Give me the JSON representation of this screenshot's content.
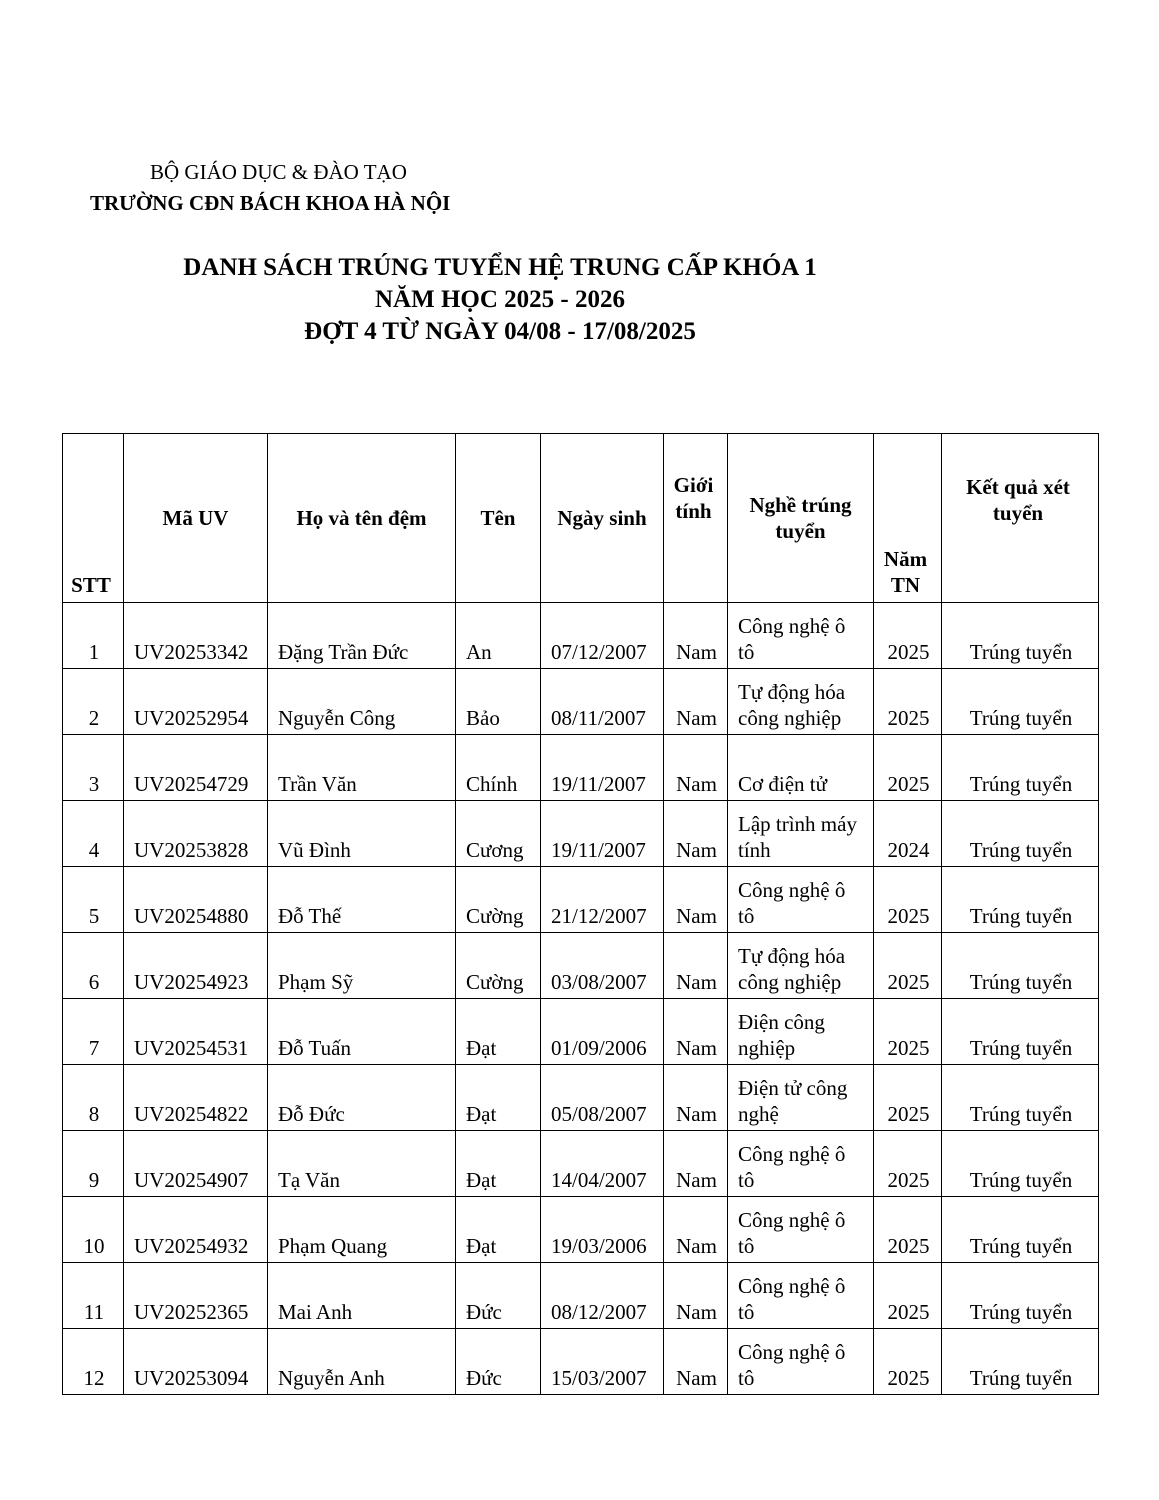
{
  "header": {
    "ministry": "BỘ GIÁO DỤC & ĐÀO TẠO",
    "school": "TRƯỜNG CĐN BÁCH KHOA HÀ NỘI"
  },
  "title": [
    "DANH SÁCH TRÚNG TUYỂN HỆ TRUNG CẤP KHÓA 1",
    "NĂM HỌC 2025 - 2026",
    "ĐỢT 4 TỪ NGÀY 04/08 - 17/08/2025"
  ],
  "table": {
    "columns": [
      "STT",
      "Mã UV",
      "Họ và tên đệm",
      "Tên",
      "Ngày sinh",
      "Giới tính",
      "Nghề trúng tuyển",
      "Năm TN",
      "Kết quả xét tuyển"
    ],
    "rows": [
      [
        "1",
        "UV20253342",
        "Đặng Trần Đức",
        "An",
        "07/12/2007",
        "Nam",
        "Công nghệ ô tô",
        "2025",
        "Trúng tuyển"
      ],
      [
        "2",
        "UV20252954",
        "Nguyễn Công",
        "Bảo",
        "08/11/2007",
        "Nam",
        "Tự động hóa công nghiệp",
        "2025",
        "Trúng tuyển"
      ],
      [
        "3",
        "UV20254729",
        "Trần Văn",
        "Chính",
        "19/11/2007",
        "Nam",
        "Cơ điện tử",
        "2025",
        "Trúng tuyển"
      ],
      [
        "4",
        "UV20253828",
        "Vũ Đình",
        "Cương",
        "19/11/2007",
        "Nam",
        "Lập trình máy tính",
        "2024",
        "Trúng tuyển"
      ],
      [
        "5",
        "UV20254880",
        "Đỗ Thế",
        "Cường",
        "21/12/2007",
        "Nam",
        "Công nghệ ô tô",
        "2025",
        "Trúng tuyển"
      ],
      [
        "6",
        "UV20254923",
        "Phạm Sỹ",
        "Cường",
        "03/08/2007",
        "Nam",
        "Tự động hóa công nghiệp",
        "2025",
        "Trúng tuyển"
      ],
      [
        "7",
        "UV20254531",
        "Đỗ Tuấn",
        "Đạt",
        "01/09/2006",
        "Nam",
        "Điện công nghiệp",
        "2025",
        "Trúng tuyển"
      ],
      [
        "8",
        "UV20254822",
        "Đỗ Đức",
        "Đạt",
        "05/08/2007",
        "Nam",
        "Điện tử công nghệ",
        "2025",
        "Trúng tuyển"
      ],
      [
        "9",
        "UV20254907",
        "Tạ Văn",
        "Đạt",
        "14/04/2007",
        "Nam",
        "Công nghệ ô tô",
        "2025",
        "Trúng tuyển"
      ],
      [
        "10",
        "UV20254932",
        "Phạm Quang",
        "Đạt",
        "19/03/2006",
        "Nam",
        "Công nghệ ô tô",
        "2025",
        "Trúng tuyển"
      ],
      [
        "11",
        "UV20252365",
        "Mai Anh",
        "Đức",
        "08/12/2007",
        "Nam",
        "Công nghệ ô tô",
        "2025",
        "Trúng tuyển"
      ],
      [
        "12",
        "UV20253094",
        "Nguyễn Anh",
        "Đức",
        "15/03/2007",
        "Nam",
        "Công nghệ ô tô",
        "2025",
        "Trúng tuyển"
      ]
    ]
  }
}
